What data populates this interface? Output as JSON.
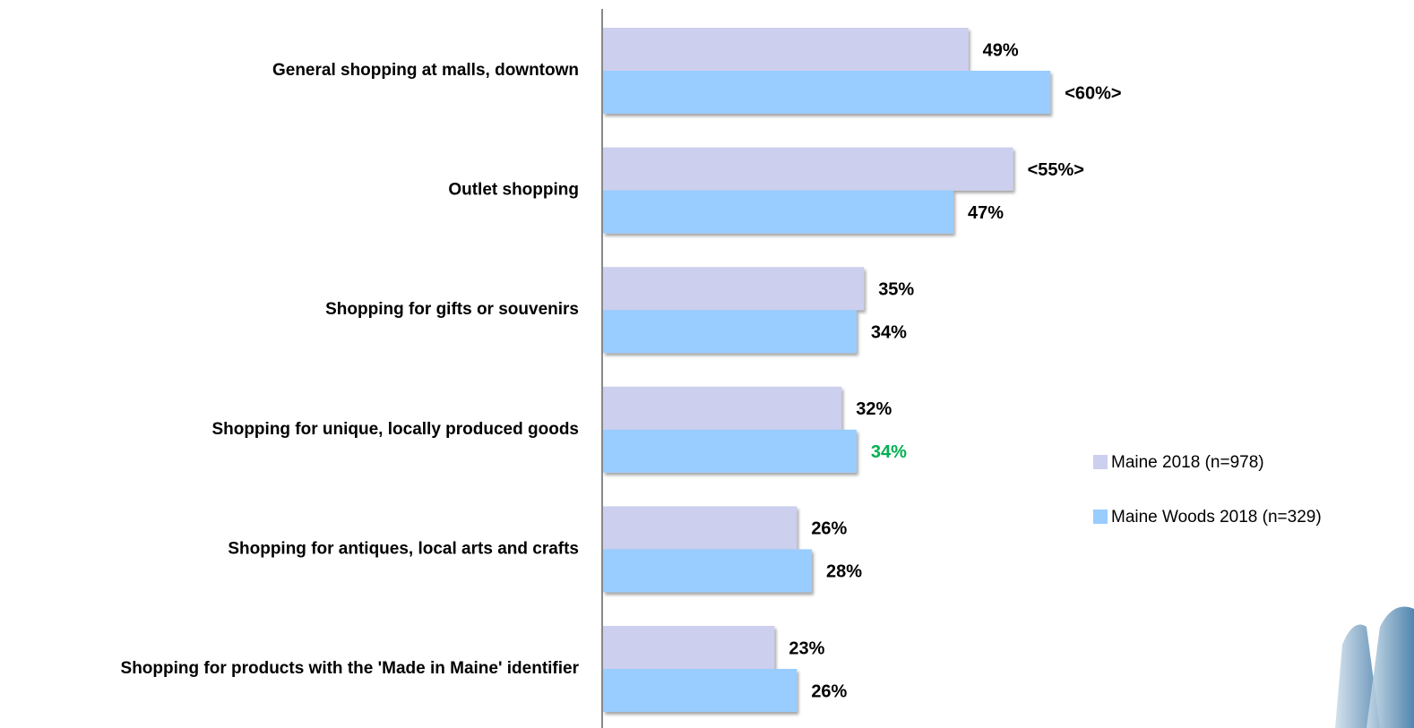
{
  "chart_data": {
    "type": "hbar",
    "categories": [
      "General shopping at malls, downtown",
      "Outlet shopping",
      "Shopping for gifts or souvenirs",
      "Shopping for unique, locally produced goods",
      "Shopping for antiques, local arts and crafts",
      "Shopping for products with the 'Made in Maine' identifier"
    ],
    "series": [
      {
        "name": "Maine 2018 (n=978)",
        "color": "#cccfee",
        "values": [
          49,
          55,
          35,
          32,
          26,
          23
        ],
        "value_labels": [
          "49%",
          "<55%>",
          "35%",
          "32%",
          "26%",
          "23%"
        ]
      },
      {
        "name": "Maine Woods 2018 (n=329)",
        "color": "#99ccff",
        "values": [
          60,
          47,
          34,
          34,
          28,
          26
        ],
        "value_labels": [
          "<60%>",
          "47%",
          "34%",
          "34%",
          "28%",
          "26%"
        ],
        "value_label_colors": [
          "#000000",
          "#000000",
          "#000000",
          "#00b050",
          "#000000",
          "#000000"
        ]
      }
    ],
    "legend": "right"
  }
}
